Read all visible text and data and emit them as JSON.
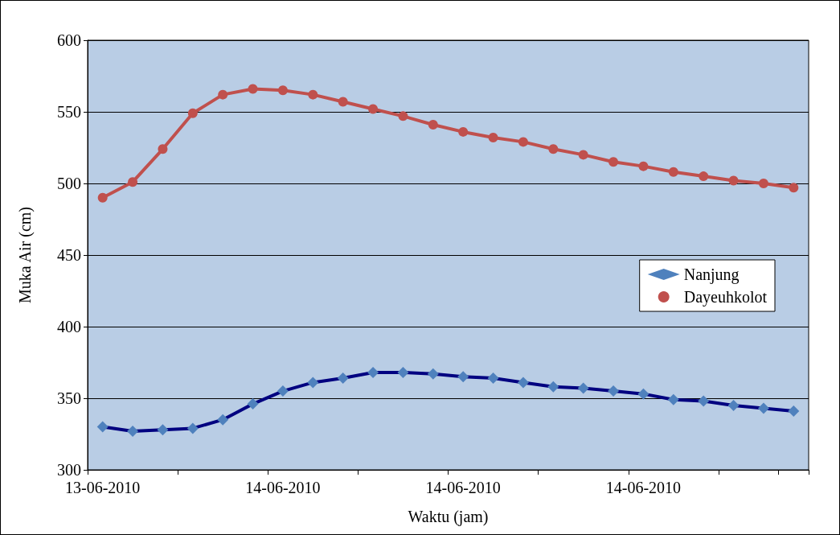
{
  "chart_data": {
    "type": "line",
    "xlabel": "Waktu (jam)",
    "ylabel": "Muka Air (cm)",
    "categories": [
      "13-06-2010",
      null,
      null,
      null,
      null,
      null,
      "14-06-2010",
      null,
      null,
      null,
      null,
      null,
      "14-06-2010",
      null,
      null,
      null,
      null,
      null,
      "14-06-2010",
      null,
      null,
      null,
      null,
      null
    ],
    "series": [
      {
        "name": "Nanjung",
        "color": "#000080",
        "colors": [
          "#4f81bd",
          "#4f81bd",
          "#4f81bd",
          "#4f81bd",
          "#4f81bd",
          "#4f81bd",
          "#4f81bd",
          "#4f81bd",
          "#4f81bd",
          "#4f81bd",
          "#4f81bd",
          "#4f81bd",
          "#4f81bd",
          "#4f81bd",
          "#4f81bd",
          "#4f81bd",
          "#4f81bd",
          "#4f81bd",
          "#4f81bd",
          "#4f81bd",
          "#4f81bd",
          "#4f81bd",
          "#4f81bd",
          "#4f81bd"
        ],
        "marker": "diamond",
        "values": [
          330,
          327,
          328,
          329,
          335,
          346,
          355,
          361,
          364,
          368,
          368,
          367,
          365,
          364,
          361,
          358,
          357,
          355,
          353,
          349,
          348,
          345,
          343,
          341
        ]
      },
      {
        "name": "Dayeuhkolot",
        "color": "#c0504d",
        "marker": "circle",
        "values": [
          490,
          501,
          524,
          549,
          562,
          566,
          565,
          562,
          557,
          552,
          547,
          541,
          536,
          532,
          529,
          524,
          520,
          515,
          512,
          508,
          505,
          502,
          500,
          497
        ]
      }
    ],
    "ylim": [
      300,
      600
    ],
    "yticks": [
      300,
      350,
      400,
      450,
      500,
      550,
      600
    ],
    "grid": "y",
    "legend": "right",
    "line_style": "solid"
  }
}
